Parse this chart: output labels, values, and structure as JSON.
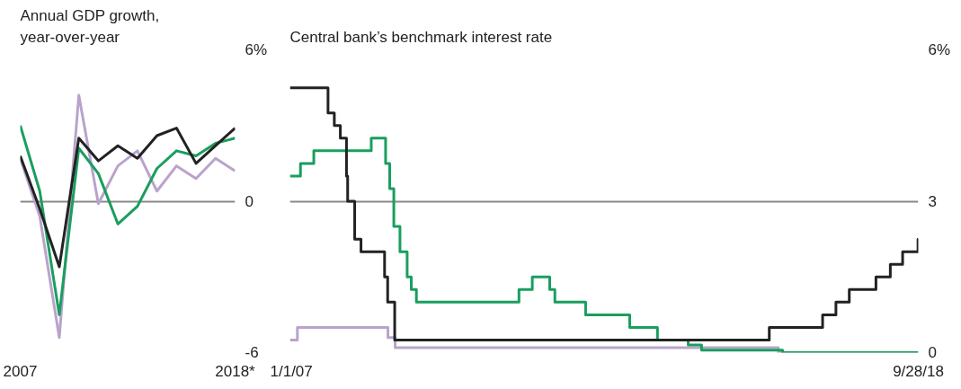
{
  "chart_data": [
    {
      "type": "line",
      "title": "Annual GDP growth,\nyear-over-year",
      "x": [
        2007,
        2008,
        2009,
        2010,
        2011,
        2012,
        2013,
        2014,
        2015,
        2016,
        2017,
        2018
      ],
      "series": [
        {
          "color": "#b9a3cc",
          "values": [
            1.7,
            -0.6,
            -5.4,
            4.2,
            -0.1,
            1.4,
            2.0,
            0.4,
            1.4,
            0.9,
            1.7,
            1.2
          ]
        },
        {
          "color": "#1a9e5f",
          "values": [
            3.0,
            0.4,
            -4.5,
            2.1,
            1.1,
            -0.9,
            -0.2,
            1.3,
            2.0,
            1.8,
            2.3,
            2.5
          ]
        },
        {
          "color": "#222222",
          "values": [
            1.8,
            -0.3,
            -2.6,
            2.5,
            1.6,
            2.2,
            1.7,
            2.6,
            2.9,
            1.5,
            2.2,
            2.9
          ]
        }
      ],
      "xlim": [
        2007,
        2018
      ],
      "xticks": [
        2007,
        {
          "value": 2018,
          "label": "2018*"
        }
      ],
      "ylim": [
        -6,
        6
      ],
      "yticks": [
        {
          "value": 6,
          "label": "6%"
        },
        0,
        -6
      ],
      "grid": "y"
    },
    {
      "type": "step",
      "title": "Central bank’s benchmark interest rate",
      "series": [
        {
          "color": "#b9a3cc",
          "x": [
            "2007-01-01",
            "2007-02-21",
            "2008-10-31",
            "2008-12-19",
            "2016-02-16",
            "2018-09-28"
          ],
          "values": [
            0.25,
            0.5,
            0.3,
            0.1,
            0.0,
            0.0
          ]
        },
        {
          "color": "#1a9e5f",
          "x": [
            "2007-01-01",
            "2007-03-14",
            "2007-06-13",
            "2008-07-09",
            "2008-10-15",
            "2008-11-12",
            "2008-12-10",
            "2009-01-21",
            "2009-03-11",
            "2009-04-08",
            "2009-05-13",
            "2011-04-13",
            "2011-07-13",
            "2011-11-09",
            "2011-12-14",
            "2012-07-11",
            "2013-05-08",
            "2013-11-13",
            "2014-06-11",
            "2014-09-10",
            "2016-03-16",
            "2018-09-28"
          ],
          "values": [
            3.5,
            3.75,
            4.0,
            4.25,
            3.75,
            3.25,
            2.5,
            2.0,
            1.5,
            1.25,
            1.0,
            1.25,
            1.5,
            1.25,
            1.0,
            0.75,
            0.5,
            0.25,
            0.15,
            0.05,
            0.0,
            0.0
          ]
        },
        {
          "color": "#222222",
          "x": [
            "2007-01-01",
            "2007-09-18",
            "2007-10-31",
            "2007-12-11",
            "2008-01-22",
            "2008-01-30",
            "2008-03-18",
            "2008-04-30",
            "2008-10-08",
            "2008-10-29",
            "2008-12-16",
            "2015-12-16",
            "2016-12-14",
            "2017-03-15",
            "2017-06-14",
            "2017-12-13",
            "2018-03-21",
            "2018-06-13",
            "2018-09-26",
            "2018-09-28"
          ],
          "values": [
            5.25,
            4.75,
            4.5,
            4.25,
            3.5,
            3.0,
            2.25,
            2.0,
            1.5,
            1.0,
            0.25,
            0.5,
            0.75,
            1.0,
            1.25,
            1.5,
            1.75,
            2.0,
            2.25,
            2.25
          ]
        }
      ],
      "xlim": [
        "2007-01-01",
        "2018-09-28"
      ],
      "xticks": [
        {
          "value": "2007-01-01",
          "label": "1/1/07"
        },
        {
          "value": "2018-09-28",
          "label": "9/28/18"
        }
      ],
      "ylim": [
        0,
        6
      ],
      "yticks": [
        {
          "value": 6,
          "label": "6%"
        },
        3,
        0
      ],
      "grid": "y"
    }
  ]
}
